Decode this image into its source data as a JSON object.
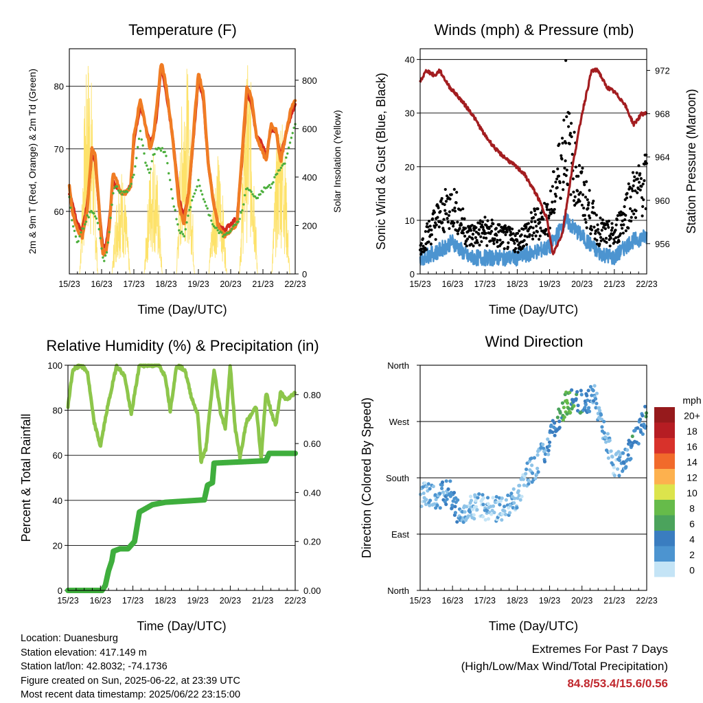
{
  "colors": {
    "temp2m": "#d42a20",
    "temp9m": "#f07c24",
    "dewpoint": "#4caf3c",
    "solar": "#fde26a",
    "wind": "#4c94d0",
    "gust": "#000000",
    "pressure": "#a31d20",
    "rh": "#8dc64b",
    "precip": "#3fae3d",
    "extremes": "#c0272d"
  },
  "xaxis": {
    "label": "Time (Day/UTC)",
    "ticks": [
      "15/23",
      "16/23",
      "17/23",
      "18/23",
      "19/23",
      "20/23",
      "21/23",
      "22/23"
    ]
  },
  "chart_data": [
    {
      "id": "temperature",
      "type": "line",
      "title": "Temperature (F)",
      "ylabel": "2m & 9m T (Red, Orange) & 2m Td (Green)",
      "y2label": "Solar Insolation (Yellow)",
      "ylim": [
        50,
        86
      ],
      "yticks": [
        60,
        70,
        80
      ],
      "y2lim": [
        0,
        930
      ],
      "y2ticks": [
        0,
        200,
        400,
        600,
        800
      ],
      "x": [
        0,
        0.1,
        0.25,
        0.4,
        0.55,
        0.7,
        0.8,
        0.9,
        1.0,
        1.05,
        1.15,
        1.25,
        1.35,
        1.45,
        1.6,
        1.75,
        1.9,
        2.0,
        2.2,
        2.35,
        2.5,
        2.6,
        2.7,
        2.85,
        3.0,
        3.2,
        3.4,
        3.55,
        3.7,
        3.9,
        4.0,
        4.15,
        4.3,
        4.45,
        4.6,
        4.8,
        5.0,
        5.2,
        5.35,
        5.5,
        5.65,
        5.8,
        5.95,
        6.1,
        6.25,
        6.4,
        6.55,
        6.7,
        6.85,
        7.0
      ],
      "series": [
        {
          "name": "2m T",
          "values": [
            64,
            60,
            57,
            56,
            60,
            70,
            69,
            62,
            55,
            53,
            54,
            58,
            66,
            65,
            63,
            63,
            64,
            72,
            78,
            74,
            70,
            72,
            76,
            84,
            80,
            72,
            61,
            58,
            63,
            76,
            82,
            79,
            68,
            62,
            58,
            56,
            57,
            58,
            69,
            80,
            78,
            72,
            70,
            68,
            74,
            73,
            68,
            72,
            76,
            78
          ]
        },
        {
          "name": "9m T",
          "values": [
            63,
            61,
            58,
            57,
            61,
            69,
            68,
            62,
            56,
            54,
            55,
            59,
            65,
            64,
            63,
            63,
            64,
            71,
            77,
            74,
            71,
            72,
            75,
            83,
            79,
            72,
            62,
            59,
            63,
            75,
            81,
            78,
            68,
            62,
            58,
            57,
            58,
            59,
            68,
            79,
            77,
            72,
            71,
            69,
            73,
            73,
            69,
            72,
            75,
            77
          ]
        },
        {
          "name": "2m Td",
          "values": [
            62,
            58,
            55,
            57,
            59,
            60,
            59,
            58,
            54,
            52,
            53,
            57,
            63,
            64,
            63,
            63,
            64,
            66,
            73,
            68,
            66,
            69,
            70,
            70,
            69,
            62,
            57,
            56,
            60,
            63,
            65,
            62,
            60,
            58,
            57,
            56,
            57,
            58,
            60,
            64,
            63,
            62,
            63,
            64,
            64,
            66,
            67,
            68,
            71,
            74
          ]
        }
      ],
      "solar_peaks": [
        {
          "day": 0.6,
          "peak": 920
        },
        {
          "day": 1.6,
          "peak": 440
        },
        {
          "day": 2.6,
          "peak": 540
        },
        {
          "day": 3.6,
          "peak": 900
        },
        {
          "day": 4.6,
          "peak": 500
        },
        {
          "day": 5.55,
          "peak": 880
        },
        {
          "day": 6.55,
          "peak": 700
        }
      ]
    },
    {
      "id": "winds",
      "type": "scatter",
      "title": "Winds (mph) & Pressure (mb)",
      "ylabel": "Sonic Wind & Gust (Blue, Black)",
      "y2label": "Station Pressure (Maroon)",
      "ylim": [
        0,
        42
      ],
      "yticks": [
        0,
        10,
        20,
        30,
        40
      ],
      "y2lim": [
        953.2,
        974
      ],
      "y2ticks": [
        956,
        960,
        964,
        968,
        972
      ],
      "x": [
        0,
        0.5,
        1,
        1.5,
        2,
        2.5,
        3,
        3.5,
        4,
        4.5,
        5,
        5.5,
        6,
        6.5,
        7
      ],
      "series": [
        {
          "name": "Sonic Wind",
          "values": [
            3,
            4,
            6,
            3,
            3,
            3,
            3,
            4,
            5,
            10,
            7,
            4,
            3,
            6,
            7
          ]
        },
        {
          "name": "Gust",
          "values": [
            5,
            10,
            13,
            7,
            8,
            7,
            6,
            9,
            11,
            25,
            15,
            8,
            7,
            14,
            17
          ]
        },
        {
          "name": "Station Pressure",
          "x": [
            0,
            0.2,
            0.45,
            0.6,
            0.9,
            1.2,
            1.6,
            2.0,
            2.4,
            2.8,
            3.2,
            3.6,
            3.9,
            4.1,
            4.4,
            4.7,
            5.0,
            5.3,
            5.5,
            5.75,
            6.0,
            6.3,
            6.6,
            6.85,
            7.0
          ],
          "values": [
            971,
            972,
            971.5,
            972,
            970.5,
            969.5,
            968,
            966,
            964.5,
            963.5,
            962.5,
            960.5,
            958.5,
            955,
            957,
            963,
            968,
            972,
            972,
            970.5,
            970,
            969,
            967,
            968,
            968
          ]
        }
      ]
    },
    {
      "id": "humidity",
      "type": "line",
      "title": "Relative Humidity (%) & Precipitation (in)",
      "ylabel": "Percent & Total Rainfall",
      "ylim": [
        0,
        100
      ],
      "yticks": [
        0,
        20,
        40,
        60,
        80,
        100
      ],
      "y2lim": [
        0,
        0.92
      ],
      "y2ticks": [
        "0.00",
        "0.20",
        "0.40",
        "0.60",
        "0.80"
      ],
      "x": [
        0,
        0.15,
        0.4,
        0.6,
        0.8,
        1.0,
        1.2,
        1.5,
        1.75,
        1.95,
        2.2,
        2.5,
        2.8,
        3.0,
        3.15,
        3.35,
        3.6,
        3.8,
        4.0,
        4.1,
        4.25,
        4.5,
        4.7,
        4.85,
        5.0,
        5.15,
        5.3,
        5.5,
        5.65,
        5.8,
        5.95,
        6.1,
        6.25,
        6.4,
        6.55,
        6.7,
        6.85,
        7.0
      ],
      "series": [
        {
          "name": "RH",
          "values": [
            82,
            98,
            100,
            97,
            75,
            64,
            80,
            100,
            95,
            78,
            100,
            100,
            100,
            95,
            80,
            100,
            98,
            86,
            78,
            57,
            63,
            98,
            79,
            72,
            100,
            72,
            59,
            75,
            78,
            82,
            58,
            88,
            80,
            73,
            88,
            85,
            86,
            88
          ]
        },
        {
          "name": "Total Rainfall",
          "x": [
            0,
            1.05,
            1.15,
            1.25,
            1.35,
            1.4,
            1.6,
            1.85,
            2.05,
            2.2,
            2.6,
            3.0,
            4.2,
            4.3,
            4.45,
            4.5,
            6.1,
            6.2,
            6.3,
            7.0
          ],
          "values": [
            0,
            0,
            0.02,
            0.08,
            0.12,
            0.16,
            0.17,
            0.17,
            0.2,
            0.32,
            0.35,
            0.36,
            0.37,
            0.43,
            0.44,
            0.52,
            0.53,
            0.56,
            0.56,
            0.56
          ]
        }
      ]
    },
    {
      "id": "direction",
      "type": "scatter",
      "title": "Wind Direction",
      "ylabel": "Direction (Colored By Speed)",
      "yticks": [
        "North",
        "East",
        "South",
        "West",
        "North"
      ],
      "ylim": [
        0,
        360
      ],
      "legend": {
        "title": "mph",
        "labels": [
          "0",
          "2",
          "4",
          "6",
          "8",
          "10",
          "12",
          "14",
          "16",
          "18",
          "20+"
        ],
        "colors": [
          "#c4e4f6",
          "#8ec3e8",
          "#4c94d0",
          "#3a7dc0",
          "#4ba35c",
          "#66bb4a",
          "#dce44c",
          "#fdb14e",
          "#f16a2b",
          "#d8322b",
          "#b61d23",
          "#961a1c"
        ]
      },
      "x": [
        0,
        0.3,
        0.6,
        0.9,
        1.2,
        1.5,
        1.8,
        2.1,
        2.4,
        2.7,
        3.0,
        3.3,
        3.6,
        3.9,
        4.2,
        4.5,
        4.8,
        5.1,
        5.4,
        5.7,
        6.0,
        6.3,
        6.6,
        6.9,
        7.0
      ],
      "values": [
        155,
        150,
        150,
        160,
        120,
        130,
        135,
        130,
        130,
        135,
        150,
        185,
        200,
        230,
        265,
        300,
        305,
        300,
        310,
        250,
        200,
        205,
        235,
        270,
        285
      ]
    }
  ],
  "info": {
    "location": "Location: Duanesburg",
    "elevation": "Station elevation: 417.149 m",
    "latlon": "Station lat/lon: 42.8032; -74.1736",
    "created": "Figure created on Sun, 2025-06-22, at 23:39 UTC",
    "timestamp": "Most recent data timestamp: 2025/06/22 23:15:00"
  },
  "extremes": {
    "title": "Extremes For Past 7 Days",
    "subtitle": "(High/Low/Max Wind/Total Precipitation)",
    "values": "84.8/53.4/15.6/0.56"
  }
}
